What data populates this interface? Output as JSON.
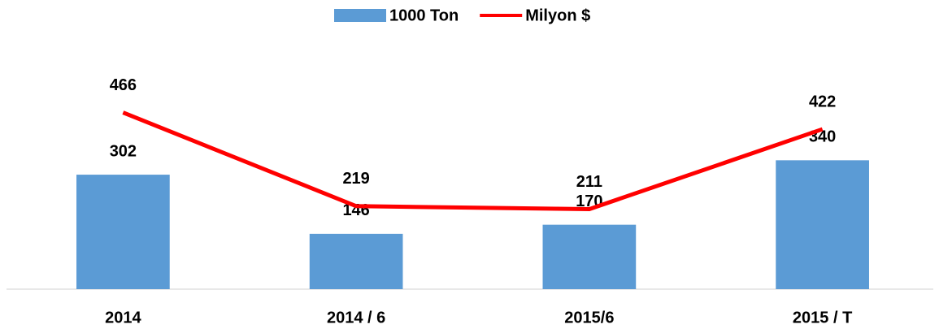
{
  "chart_data": {
    "type": "bar",
    "categories": [
      "2014",
      "2014 / 6",
      "2015/6",
      "2015 / T"
    ],
    "series": [
      {
        "name": "1000 Ton",
        "type": "bar",
        "color": "#5b9bd5",
        "values": [
          302,
          146,
          170,
          340
        ]
      },
      {
        "name": "Milyon $",
        "type": "line",
        "color": "#ff0000",
        "values": [
          466,
          219,
          211,
          422
        ]
      }
    ],
    "ylim": [
      0,
      600
    ],
    "legend": "top",
    "grid": false
  }
}
